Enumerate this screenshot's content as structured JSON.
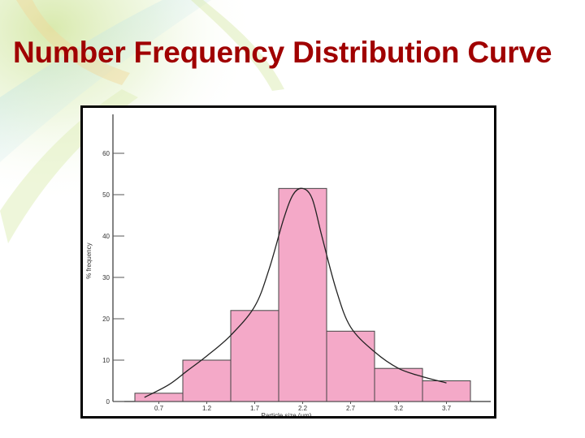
{
  "slide": {
    "title": "Number Frequency Distribution Curve"
  },
  "colors": {
    "title": "#a00000",
    "bar_fill": "#f4a9c8",
    "bar_stroke": "#444444",
    "curve": "#222222",
    "background_accent": "#c8e08a"
  },
  "chart_data": {
    "type": "bar",
    "categories": [
      "0.7",
      "1.2",
      "1.7",
      "2.2",
      "2.7",
      "3.2",
      "3.7"
    ],
    "values": [
      2,
      10,
      22,
      51.5,
      17,
      8,
      5
    ],
    "ylabel": "% frequency",
    "xlabel": "Particle size (μm)",
    "ylim": [
      0,
      60
    ],
    "yticks": [
      "0",
      "10",
      "20",
      "30",
      "40",
      "50",
      "60"
    ],
    "overlay": {
      "type": "line",
      "smooth": true,
      "x": [
        0.55,
        0.8,
        1.0,
        1.2,
        1.45,
        1.7,
        1.85,
        2.0,
        2.1,
        2.2,
        2.3,
        2.4,
        2.55,
        2.7,
        2.95,
        3.2,
        3.45,
        3.7
      ],
      "y": [
        1,
        4,
        7.5,
        11,
        16,
        23,
        32,
        44,
        50,
        51.5,
        49,
        40,
        27,
        18,
        12,
        8,
        6,
        4.5
      ]
    },
    "grid": false,
    "legend": "none"
  }
}
